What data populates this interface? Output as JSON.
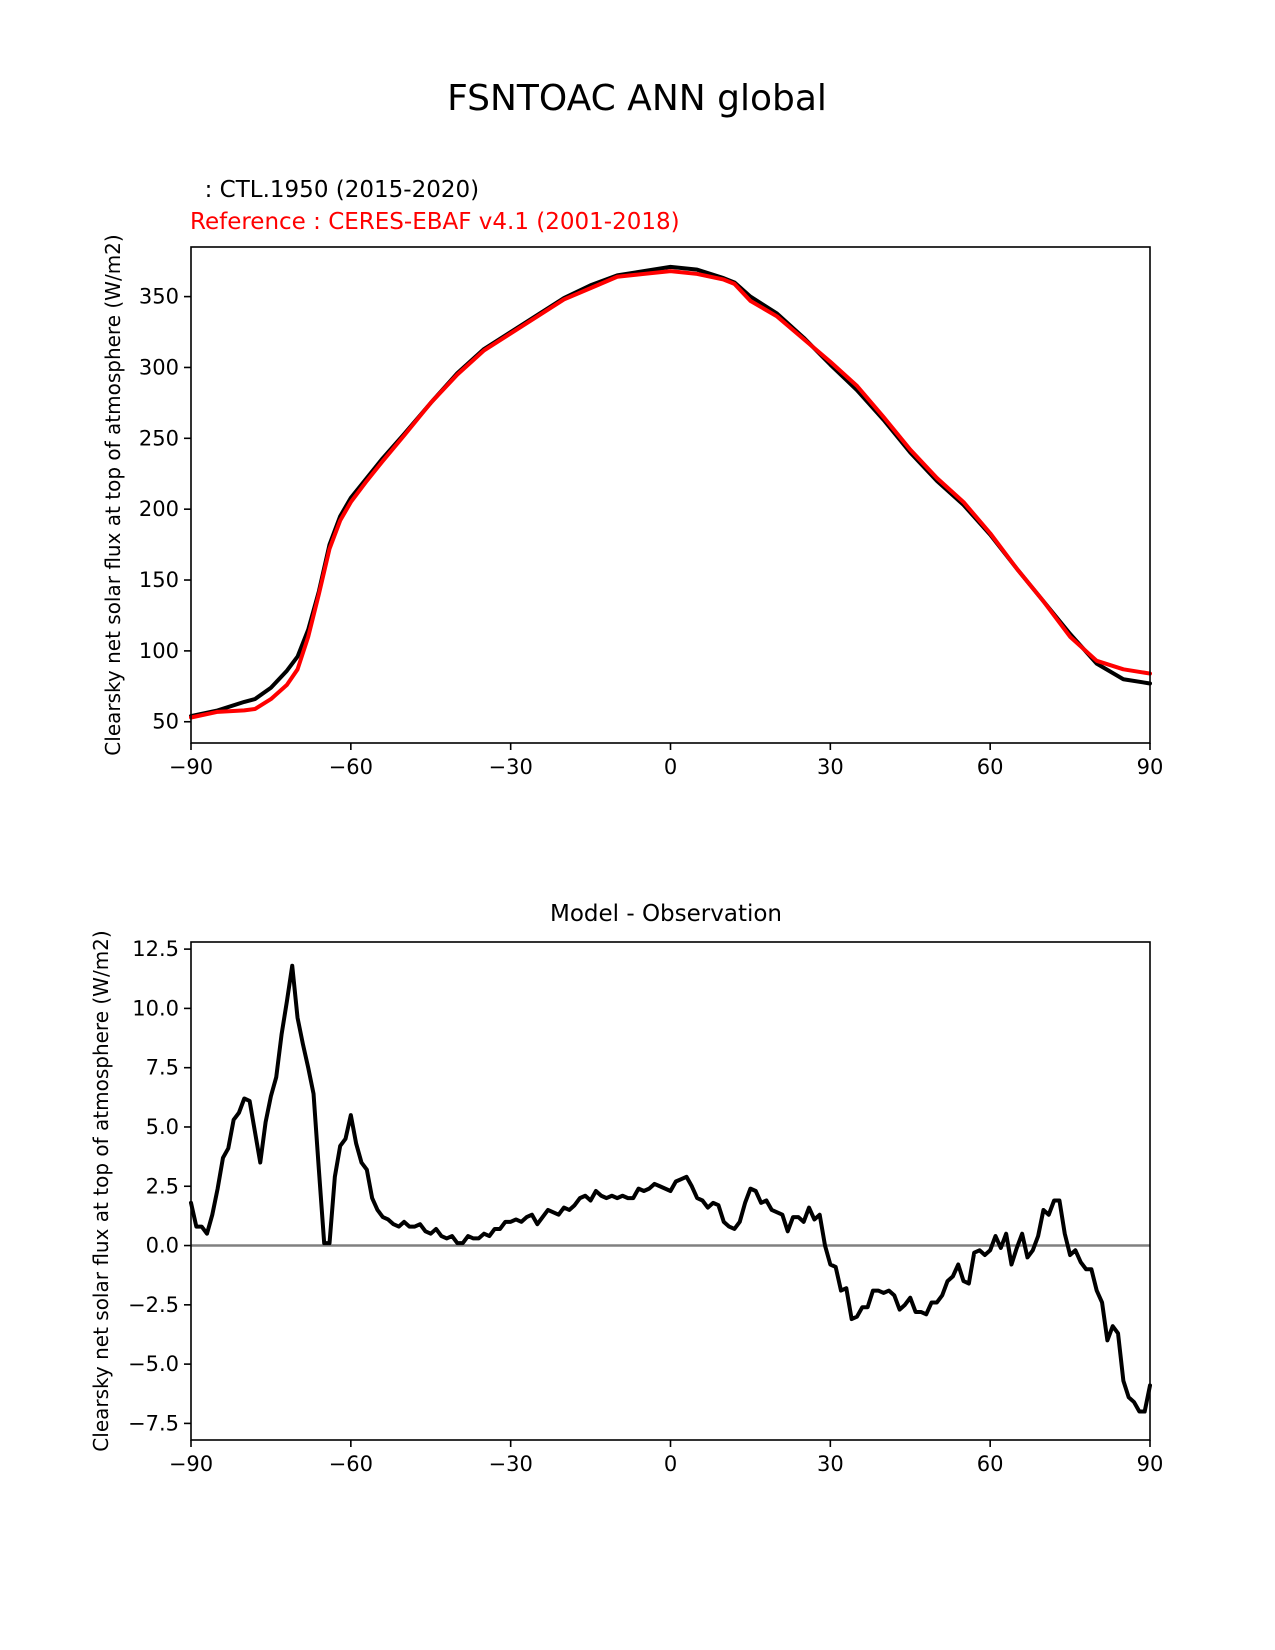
{
  "figure_title": "FSNTOAC ANN global",
  "colors": {
    "model": "#000000",
    "reference": "#ff0000",
    "zero_line": "#808080"
  },
  "chart_data": [
    {
      "type": "line",
      "title": "",
      "test_label": "  : CTL.1950 (2015-2020)",
      "reference_label": "Reference : CERES-EBAF v4.1 (2001-2018)",
      "xlabel": "",
      "ylabel": "Clearsky net solar flux at top of atmosphere (W/m2)",
      "xlim": [
        -90,
        90
      ],
      "ylim": [
        35,
        385
      ],
      "xticks": [
        -90,
        -60,
        -30,
        0,
        30,
        60,
        90
      ],
      "xtick_labels": [
        "−90",
        "−60",
        "−30",
        "0",
        "30",
        "60",
        "90"
      ],
      "yticks": [
        50,
        100,
        150,
        200,
        250,
        300,
        350
      ],
      "ytick_labels": [
        "50",
        "100",
        "150",
        "200",
        "250",
        "300",
        "350"
      ],
      "x": [
        -90,
        -85,
        -80,
        -78,
        -75,
        -72,
        -70,
        -68,
        -66,
        -64,
        -62,
        -60,
        -57,
        -54,
        -50,
        -45,
        -40,
        -35,
        -30,
        -25,
        -20,
        -15,
        -10,
        -5,
        0,
        5,
        10,
        12,
        15,
        20,
        25,
        30,
        35,
        40,
        45,
        50,
        55,
        60,
        65,
        70,
        75,
        80,
        85,
        90
      ],
      "series": [
        {
          "name": "model",
          "values": [
            54,
            58,
            64,
            66,
            74,
            86,
            96,
            115,
            142,
            175,
            195,
            208,
            222,
            236,
            253,
            275,
            296,
            313,
            325,
            337,
            349,
            358,
            365,
            368,
            371,
            369,
            363,
            360,
            350,
            338,
            321,
            302,
            284,
            263,
            240,
            220,
            203,
            182,
            158,
            135,
            112,
            91,
            80,
            77
          ]
        },
        {
          "name": "reference",
          "values": [
            53,
            57,
            58,
            59,
            66,
            76,
            87,
            110,
            140,
            172,
            192,
            205,
            220,
            234,
            252,
            275,
            295,
            312,
            324,
            336,
            348,
            356,
            364,
            366,
            368,
            366,
            362,
            359,
            347,
            336,
            320,
            304,
            287,
            265,
            242,
            222,
            205,
            183,
            158,
            135,
            110,
            93,
            87,
            84
          ]
        }
      ]
    },
    {
      "type": "line",
      "title": "Model - Observation",
      "xlabel": "",
      "ylabel": "Clearsky net solar flux at top of atmosphere (W/m2)",
      "xlim": [
        -90,
        90
      ],
      "ylim": [
        -8.2,
        12.8
      ],
      "xticks": [
        -90,
        -60,
        -30,
        0,
        30,
        60,
        90
      ],
      "xtick_labels": [
        "−90",
        "−60",
        "−30",
        "0",
        "30",
        "60",
        "90"
      ],
      "yticks": [
        -7.5,
        -5.0,
        -2.5,
        0.0,
        2.5,
        5.0,
        7.5,
        10.0,
        12.5
      ],
      "ytick_labels": [
        "−7.5",
        "−5.0",
        "−2.5",
        "0.0",
        "2.5",
        "5.0",
        "7.5",
        "10.0",
        "12.5"
      ],
      "reference_line": 0,
      "x": [
        -90,
        -89,
        -88,
        -87,
        -86,
        -85,
        -84,
        -83,
        -82,
        -81,
        -80,
        -79,
        -78,
        -77,
        -76,
        -75,
        -74,
        -73,
        -72,
        -71,
        -70,
        -69,
        -68,
        -67,
        -66,
        -65,
        -64,
        -63,
        -62,
        -61,
        -60,
        -59,
        -58,
        -57,
        -56,
        -55,
        -54,
        -53,
        -52,
        -51,
        -50,
        -49,
        -48,
        -47,
        -46,
        -45,
        -44,
        -43,
        -42,
        -41,
        -40,
        -39,
        -38,
        -37,
        -36,
        -35,
        -34,
        -33,
        -32,
        -31,
        -30,
        -29,
        -28,
        -27,
        -26,
        -25,
        -24,
        -23,
        -22,
        -21,
        -20,
        -19,
        -18,
        -17,
        -16,
        -15,
        -14,
        -13,
        -12,
        -11,
        -10,
        -9,
        -8,
        -7,
        -6,
        -5,
        -4,
        -3,
        -2,
        -1,
        0,
        1,
        2,
        3,
        4,
        5,
        6,
        7,
        8,
        9,
        10,
        11,
        12,
        13,
        14,
        15,
        16,
        17,
        18,
        19,
        20,
        21,
        22,
        23,
        24,
        25,
        26,
        27,
        28,
        29,
        30,
        31,
        32,
        33,
        34,
        35,
        36,
        37,
        38,
        39,
        40,
        41,
        42,
        43,
        44,
        45,
        46,
        47,
        48,
        49,
        50,
        51,
        52,
        53,
        54,
        55,
        56,
        57,
        58,
        59,
        60,
        61,
        62,
        63,
        64,
        65,
        66,
        67,
        68,
        69,
        70,
        71,
        72,
        73,
        74,
        75,
        76,
        77,
        78,
        79,
        80,
        81,
        82,
        83,
        84,
        85,
        86,
        87,
        88,
        89,
        90
      ],
      "series": [
        {
          "name": "difference",
          "values": [
            1.8,
            0.8,
            0.8,
            0.5,
            1.3,
            2.4,
            3.7,
            4.1,
            5.3,
            5.6,
            6.2,
            6.1,
            4.8,
            3.5,
            5.2,
            6.3,
            7.1,
            8.9,
            10.3,
            11.8,
            9.6,
            8.5,
            7.5,
            6.4,
            3.2,
            0.1,
            0.1,
            2.9,
            4.2,
            4.5,
            5.5,
            4.3,
            3.5,
            3.2,
            2.0,
            1.5,
            1.2,
            1.1,
            0.9,
            0.8,
            1.0,
            0.8,
            0.8,
            0.9,
            0.6,
            0.5,
            0.7,
            0.4,
            0.3,
            0.4,
            0.1,
            0.1,
            0.4,
            0.3,
            0.3,
            0.5,
            0.4,
            0.7,
            0.7,
            1.0,
            1.0,
            1.1,
            1.0,
            1.2,
            1.3,
            0.9,
            1.2,
            1.5,
            1.4,
            1.3,
            1.6,
            1.5,
            1.7,
            2.0,
            2.1,
            1.9,
            2.3,
            2.1,
            2.0,
            2.1,
            2.0,
            2.1,
            2.0,
            2.0,
            2.4,
            2.3,
            2.4,
            2.6,
            2.5,
            2.4,
            2.3,
            2.7,
            2.8,
            2.9,
            2.5,
            2.0,
            1.9,
            1.6,
            1.8,
            1.7,
            1.0,
            0.8,
            0.7,
            1.0,
            1.8,
            2.4,
            2.3,
            1.8,
            1.9,
            1.5,
            1.4,
            1.3,
            0.6,
            1.2,
            1.2,
            1.0,
            1.6,
            1.1,
            1.3,
            0.0,
            -0.8,
            -0.9,
            -1.9,
            -1.8,
            -3.1,
            -3.0,
            -2.6,
            -2.6,
            -1.9,
            -1.9,
            -2.0,
            -1.9,
            -2.1,
            -2.7,
            -2.5,
            -2.2,
            -2.8,
            -2.8,
            -2.9,
            -2.4,
            -2.4,
            -2.1,
            -1.5,
            -1.3,
            -0.8,
            -1.5,
            -1.6,
            -0.3,
            -0.2,
            -0.4,
            -0.2,
            0.4,
            -0.1,
            0.5,
            -0.8,
            -0.1,
            0.5,
            -0.5,
            -0.2,
            0.4,
            1.5,
            1.3,
            1.9,
            1.9,
            0.5,
            -0.4,
            -0.2,
            -0.7,
            -1.0,
            -1.0,
            -1.9,
            -2.4,
            -4.0,
            -3.4,
            -3.7,
            -5.7,
            -6.4,
            -6.6,
            -7.0,
            -7.0,
            -5.9
          ]
        }
      ]
    }
  ]
}
